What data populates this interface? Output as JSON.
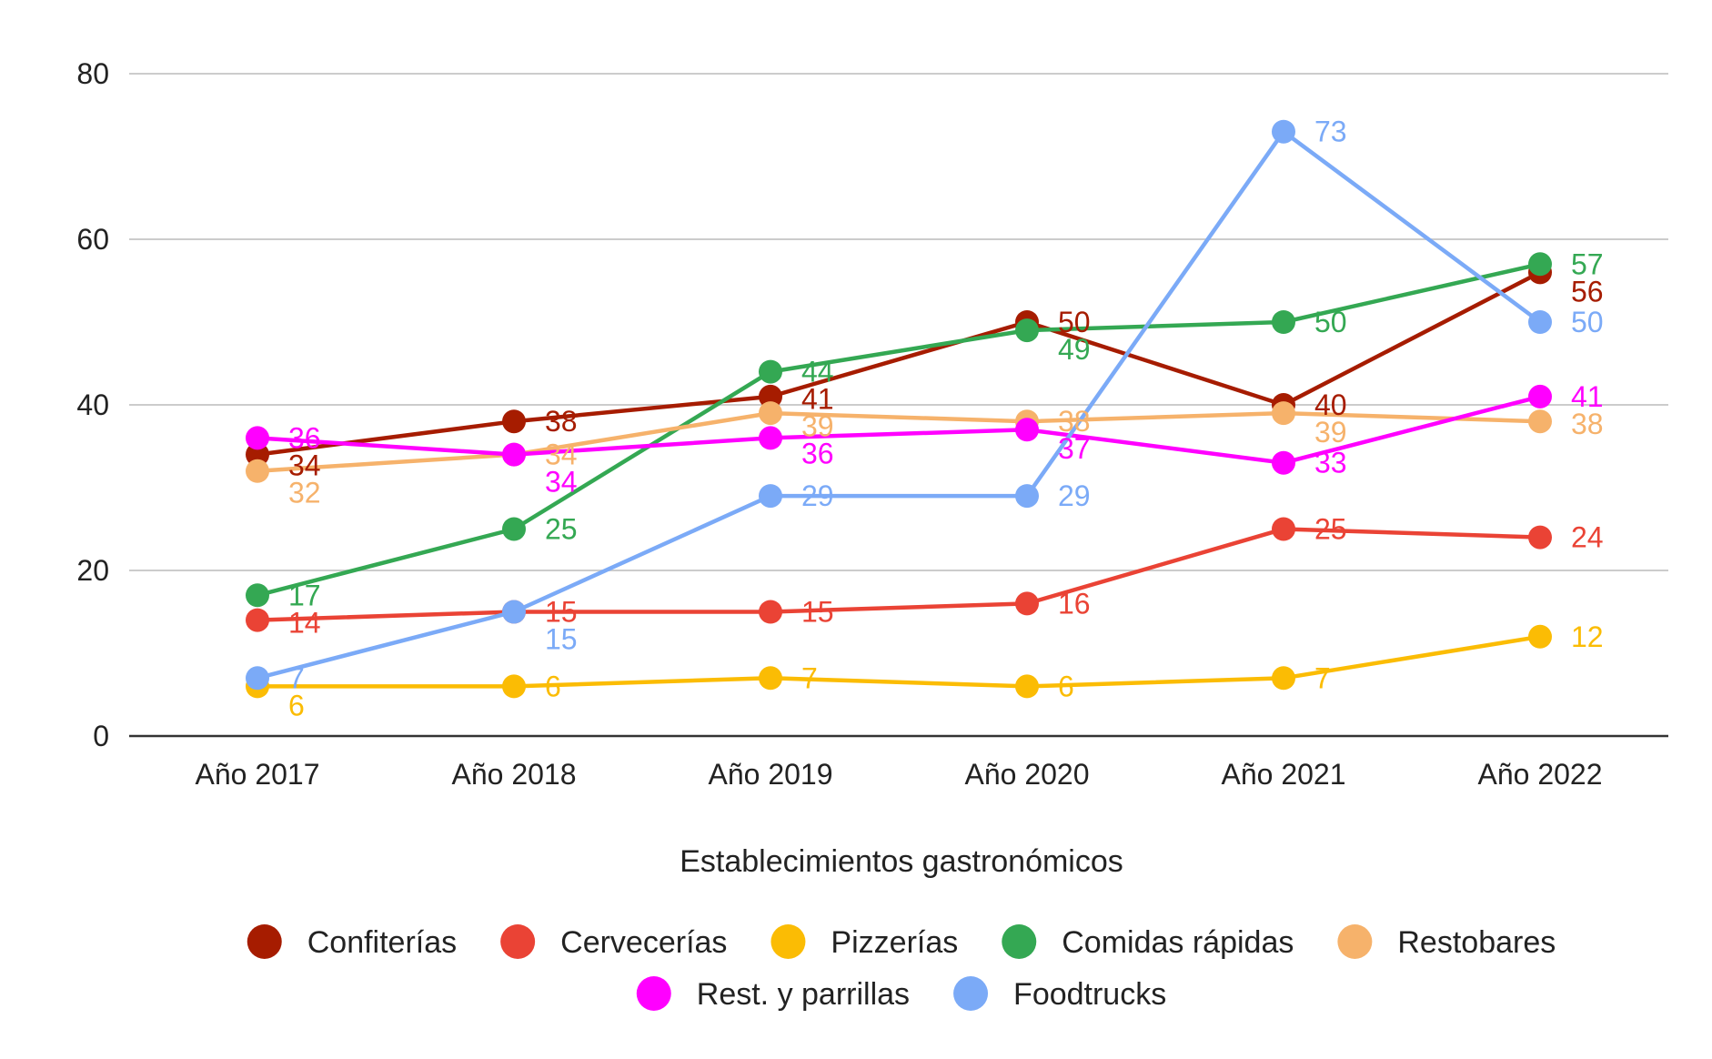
{
  "chart_data": {
    "type": "line",
    "title": "",
    "xlabel": "Establecimientos gastronómicos",
    "ylabel": "",
    "ylim": [
      0,
      80
    ],
    "yticks": [
      0,
      20,
      40,
      60,
      80
    ],
    "grid": true,
    "legend_position": "bottom",
    "categories": [
      "Año 2017",
      "Año 2018",
      "Año 2019",
      "Año 2020",
      "Año 2021",
      "Año 2022"
    ],
    "series": [
      {
        "name": "Confiterías",
        "color": "#a61c00",
        "values": [
          34,
          38,
          41,
          50,
          40,
          56
        ]
      },
      {
        "name": "Cervecerías",
        "color": "#ea4335",
        "values": [
          14,
          15,
          15,
          16,
          25,
          24
        ]
      },
      {
        "name": "Pizzerías",
        "color": "#fbbc04",
        "values": [
          6,
          6,
          7,
          6,
          7,
          12
        ]
      },
      {
        "name": "Comidas rápidas",
        "color": "#34a853",
        "values": [
          17,
          25,
          44,
          49,
          50,
          57
        ]
      },
      {
        "name": "Restobares",
        "color": "#f6b26b",
        "values": [
          32,
          34,
          39,
          38,
          39,
          38
        ]
      },
      {
        "name": "Rest. y parrillas",
        "color": "#ff00ff",
        "values": [
          36,
          34,
          36,
          37,
          33,
          41
        ]
      },
      {
        "name": "Foodtrucks",
        "color": "#7baaf7",
        "values": [
          7,
          15,
          29,
          29,
          73,
          50
        ]
      }
    ]
  }
}
